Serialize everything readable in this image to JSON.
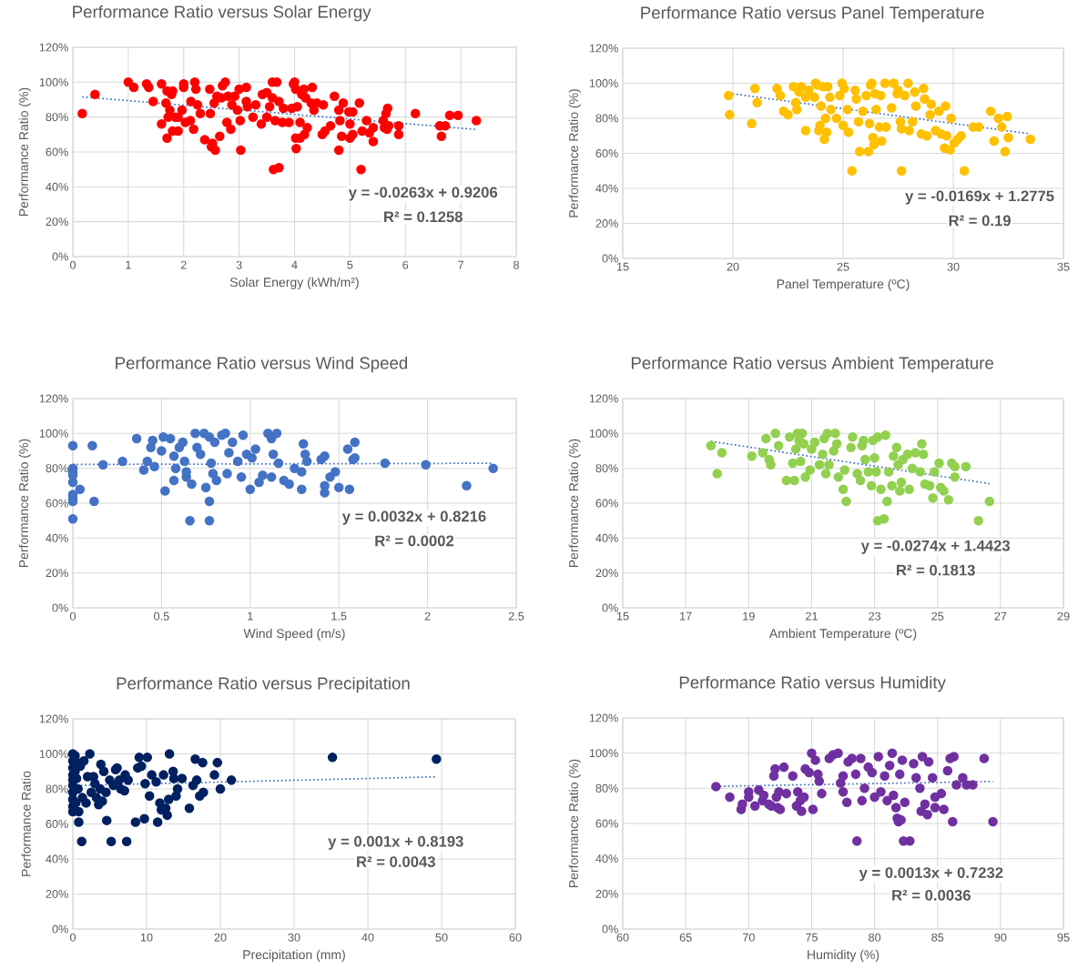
{
  "chart_data": [
    {
      "type": "scatter",
      "title": "Performance  Ratio versus Solar Energy",
      "xlabel": "Solar Energy (kWh/m²)",
      "ylabel": "Performance Ratio (%)",
      "xlim": [
        0,
        8
      ],
      "xticks": [
        0,
        1,
        2,
        3,
        4,
        5,
        6,
        7,
        8
      ],
      "ylim": [
        0,
        120
      ],
      "yticks": [
        {
          "value": 0,
          "label": "0%"
        },
        {
          "value": 20,
          "label": "20%"
        },
        {
          "value": 40,
          "label": "40%"
        },
        {
          "value": 60,
          "label": "60%"
        },
        {
          "value": 80,
          "label": "80%"
        },
        {
          "value": 100,
          "label": "100%"
        },
        {
          "value": 120,
          "label": "120%"
        }
      ],
      "grid": true,
      "marker": "circle",
      "annotations": [
        "y = -0.0263x + 0.9206",
        "R² = 0.1258"
      ],
      "series": [
        {
          "color": "#ff0000",
          "x": [
            0.17,
            0.4,
            1.0,
            1.1,
            1.33,
            1.37,
            1.45,
            1.6,
            1.6,
            1.68,
            1.7,
            1.7,
            1.72,
            1.75,
            1.78,
            1.8,
            1.8,
            1.85,
            1.9,
            1.9,
            1.97,
            2.0,
            2.0,
            2.03,
            2.12,
            2.13,
            2.18,
            2.2,
            2.22,
            2.25,
            2.3,
            2.38,
            2.47,
            2.48,
            2.5,
            2.52,
            2.55,
            2.57,
            2.6,
            2.65,
            2.68,
            2.7,
            2.75,
            2.78,
            2.8,
            2.85,
            2.87,
            2.92,
            2.97,
            3.0,
            3.02,
            3.03,
            3.13,
            3.13,
            3.15,
            3.25,
            3.3,
            3.4,
            3.42,
            3.5,
            3.5,
            3.55,
            3.6,
            3.6,
            3.62,
            3.65,
            3.68,
            3.72,
            3.72,
            3.78,
            3.8,
            3.9,
            3.95,
            3.98,
            4.0,
            4.02,
            4.02,
            4.03,
            4.05,
            4.1,
            4.1,
            4.13,
            4.17,
            4.18,
            4.2,
            4.23,
            4.3,
            4.32,
            4.35,
            4.4,
            4.5,
            4.52,
            4.55,
            4.65,
            4.72,
            4.8,
            4.8,
            4.82,
            4.85,
            4.88,
            4.98,
            5.0,
            5.0,
            5.05,
            5.05,
            5.17,
            5.2,
            5.22,
            5.3,
            5.35,
            5.42,
            5.42,
            5.6,
            5.62,
            5.65,
            5.67,
            5.68,
            5.7,
            5.88,
            5.88,
            6.18,
            6.62,
            6.65,
            6.72,
            6.8,
            6.95,
            7.28
          ],
          "values": [
            82,
            93,
            100,
            97,
            99,
            97,
            89,
            99,
            76,
            88,
            68,
            95,
            80,
            84,
            93,
            95,
            72,
            80,
            72,
            80,
            84,
            97,
            99,
            77,
            78,
            89,
            73,
            100,
            96,
            87,
            82,
            67,
            96,
            82,
            63,
            65,
            88,
            61,
            92,
            69,
            91,
            98,
            100,
            77,
            92,
            73,
            87,
            92,
            84,
            96,
            78,
            61,
            97,
            89,
            86,
            80,
            87,
            76,
            93,
            94,
            80,
            86,
            100,
            91,
            50,
            78,
            100,
            89,
            51,
            77,
            85,
            77,
            85,
            99,
            100,
            96,
            68,
            62,
            86,
            77,
            68,
            93,
            96,
            70,
            91,
            74,
            88,
            97,
            84,
            88,
            70,
            87,
            72,
            75,
            92,
            84,
            61,
            78,
            69,
            88,
            83,
            68,
            76,
            70,
            83,
            88,
            50,
            72,
            78,
            71,
            74,
            66,
            78,
            74,
            82,
            73,
            85,
            75,
            75,
            70,
            82,
            75,
            69,
            75,
            81,
            81,
            78
          ]
        },
        {
          "type": "line",
          "color": "#4472c4",
          "line_style": "dotted",
          "marker": "none",
          "x": [
            0.17,
            7.28
          ],
          "values": [
            91.6,
            72.9
          ]
        }
      ]
    },
    {
      "type": "scatter",
      "title": "Performance  Ratio versus Panel Temperature",
      "xlabel": "Panel Temperature (ºC)",
      "ylabel": "Performance Ratio (%)",
      "xlim": [
        15,
        35
      ],
      "xticks": [
        15,
        20,
        25,
        30,
        35
      ],
      "ylim": [
        0,
        120
      ],
      "yticks": [
        {
          "value": 0,
          "label": "0%"
        },
        {
          "value": 20,
          "label": "20%"
        },
        {
          "value": 40,
          "label": "40%"
        },
        {
          "value": 60,
          "label": "60%"
        },
        {
          "value": 80,
          "label": "80%"
        },
        {
          "value": 100,
          "label": "100%"
        },
        {
          "value": 120,
          "label": "120%"
        }
      ],
      "grid": true,
      "marker": "circle",
      "annotations": [
        "y = -0.0169x + 1.2775",
        "R² = 0.19"
      ],
      "series": [
        {
          "color": "#ffc000",
          "x": [
            19.8,
            19.85,
            20.85,
            21.0,
            21.1,
            22.0,
            22.15,
            22.3,
            22.5,
            22.75,
            22.85,
            22.9,
            23.0,
            23.1,
            23.3,
            23.3,
            23.45,
            23.7,
            23.75,
            23.85,
            23.9,
            23.95,
            24.0,
            24.1,
            24.15,
            24.2,
            24.25,
            24.3,
            24.4,
            24.45,
            24.7,
            24.85,
            24.95,
            25.0,
            25.05,
            25.2,
            25.25,
            25.4,
            25.55,
            25.6,
            25.7,
            25.75,
            25.9,
            26.05,
            26.15,
            26.2,
            26.25,
            26.3,
            26.35,
            26.4,
            26.45,
            26.5,
            26.65,
            26.7,
            26.75,
            26.9,
            26.95,
            27.2,
            27.3,
            27.45,
            27.5,
            27.6,
            27.65,
            27.65,
            27.8,
            27.95,
            28.0,
            28.15,
            28.25,
            28.3,
            28.55,
            28.65,
            28.7,
            28.8,
            28.95,
            29.0,
            29.2,
            29.35,
            29.45,
            29.6,
            29.65,
            29.7,
            29.85,
            29.9,
            30.05,
            30.2,
            30.35,
            30.5,
            30.9,
            31.15,
            31.7,
            31.85,
            32.05,
            32.2,
            32.35,
            32.45,
            32.5,
            33.5
          ],
          "values": [
            93,
            82,
            77,
            97,
            89,
            97,
            93,
            84,
            82,
            98,
            89,
            85,
            95,
            98,
            73,
            92,
            96,
            92,
            100,
            99,
            73,
            76,
            87,
            98,
            68,
            80,
            72,
            98,
            92,
            85,
            80,
            93,
            100,
            76,
            97,
            85,
            72,
            50,
            96,
            91,
            78,
            61,
            84,
            93,
            61,
            77,
            99,
            100,
            69,
            65,
            94,
            85,
            75,
            93,
            67,
            100,
            75,
            86,
            100,
            94,
            96,
            78,
            74,
            50,
            93,
            100,
            73,
            78,
            95,
            87,
            71,
            97,
            91,
            70,
            82,
            88,
            73,
            84,
            71,
            63,
            87,
            70,
            62,
            80,
            66,
            68,
            70,
            50,
            75,
            75,
            84,
            67,
            80,
            75,
            61,
            81,
            69,
            68
          ]
        },
        {
          "type": "line",
          "color": "#4472c4",
          "line_style": "dotted",
          "marker": "none",
          "x": [
            19.8,
            33.5
          ],
          "values": [
            94.3,
            71.1
          ]
        }
      ]
    },
    {
      "type": "scatter",
      "title": "Performance  Ratio versus Wind Speed",
      "xlabel": "Wind Speed (m/s)",
      "ylabel": "Performance Ratio (%)",
      "xlim": [
        0,
        2.5
      ],
      "xticks": [
        0,
        0.5,
        1,
        1.5,
        2,
        2.5
      ],
      "ylim": [
        0,
        120
      ],
      "yticks": [
        {
          "value": 0,
          "label": "0%"
        },
        {
          "value": 20,
          "label": "20%"
        },
        {
          "value": 40,
          "label": "40%"
        },
        {
          "value": 60,
          "label": "60%"
        },
        {
          "value": 80,
          "label": "80%"
        },
        {
          "value": 100,
          "label": "100%"
        },
        {
          "value": 120,
          "label": "120%"
        }
      ],
      "grid": true,
      "marker": "circle",
      "annotations": [
        "y = 0.0032x + 0.8216",
        "R² = 0.0002"
      ],
      "series": [
        {
          "color": "#4472c4",
          "x": [
            0,
            0,
            0,
            0,
            0,
            0,
            0,
            0,
            0,
            0.04,
            0.11,
            0.12,
            0.17,
            0.28,
            0.36,
            0.4,
            0.42,
            0.44,
            0.45,
            0.46,
            0.5,
            0.51,
            0.52,
            0.55,
            0.57,
            0.57,
            0.58,
            0.6,
            0.62,
            0.63,
            0.64,
            0.64,
            0.66,
            0.67,
            0.69,
            0.7,
            0.72,
            0.74,
            0.75,
            0.77,
            0.77,
            0.77,
            0.78,
            0.79,
            0.8,
            0.81,
            0.84,
            0.86,
            0.87,
            0.88,
            0.9,
            0.93,
            0.95,
            0.96,
            0.98,
            1.0,
            1.01,
            1.03,
            1.05,
            1.07,
            1.1,
            1.12,
            1.12,
            1.13,
            1.15,
            1.16,
            1.19,
            1.22,
            1.25,
            1.29,
            1.29,
            1.3,
            1.31,
            1.32,
            1.4,
            1.42,
            1.42,
            1.42,
            1.45,
            1.48,
            1.5,
            1.55,
            1.56,
            1.58,
            1.59,
            1.59,
            1.76,
            1.99,
            2.22,
            2.37
          ],
          "values": [
            93,
            80,
            78,
            76,
            72,
            65,
            63,
            61,
            51,
            68,
            93,
            61,
            82,
            84,
            97,
            79,
            84,
            92,
            96,
            81,
            90,
            98,
            67,
            97,
            87,
            73,
            80,
            92,
            95,
            84,
            75,
            78,
            50,
            71,
            100,
            92,
            88,
            100,
            69,
            98,
            61,
            50,
            83,
            77,
            95,
            73,
            99,
            100,
            77,
            89,
            95,
            84,
            75,
            99,
            88,
            68,
            86,
            91,
            72,
            76,
            100,
            97,
            75,
            88,
            100,
            83,
            73,
            71,
            80,
            68,
            78,
            94,
            88,
            84,
            85,
            87,
            70,
            66,
            75,
            78,
            69,
            91,
            68,
            85,
            95,
            86,
            83,
            82,
            70,
            80
          ]
        },
        {
          "type": "line",
          "color": "#4472c4",
          "line_style": "dotted",
          "marker": "none",
          "x": [
            0,
            2.37
          ],
          "values": [
            82.2,
            82.9
          ]
        }
      ]
    },
    {
      "type": "scatter",
      "title": "Performance  Ratio versus Ambient Temperature",
      "xlabel": "Ambient Temperature (ºC)",
      "ylabel": "Performance Ratio (%)",
      "xlim": [
        15,
        29
      ],
      "xticks": [
        15,
        17,
        19,
        21,
        23,
        25,
        27,
        29
      ],
      "ylim": [
        0,
        120
      ],
      "yticks": [
        {
          "value": 0,
          "label": "0%"
        },
        {
          "value": 20,
          "label": "20%"
        },
        {
          "value": 40,
          "label": "40%"
        },
        {
          "value": 60,
          "label": "60%"
        },
        {
          "value": 80,
          "label": "80%"
        },
        {
          "value": 100,
          "label": "100%"
        },
        {
          "value": 120,
          "label": "120%"
        }
      ],
      "grid": true,
      "marker": "circle",
      "annotations": [
        "y = -0.0274x + 1.4423",
        "R² = 0.1813"
      ],
      "series": [
        {
          "color": "#92d050",
          "x": [
            17.8,
            18.0,
            18.15,
            19.1,
            19.45,
            19.55,
            19.65,
            19.7,
            19.85,
            19.95,
            20.2,
            20.3,
            20.4,
            20.45,
            20.5,
            20.55,
            20.6,
            20.65,
            20.7,
            20.75,
            20.8,
            20.95,
            21.0,
            21.1,
            21.25,
            21.35,
            21.4,
            21.45,
            21.5,
            21.55,
            21.7,
            21.75,
            21.8,
            21.85,
            22.0,
            22.05,
            22.1,
            22.25,
            22.3,
            22.45,
            22.55,
            22.6,
            22.65,
            22.7,
            22.8,
            22.9,
            22.95,
            23.0,
            23.05,
            23.1,
            23.1,
            23.2,
            23.3,
            23.35,
            23.4,
            23.45,
            23.55,
            23.6,
            23.7,
            23.75,
            23.8,
            23.85,
            23.9,
            24.05,
            24.1,
            24.2,
            24.3,
            24.45,
            24.5,
            24.55,
            24.6,
            24.75,
            24.85,
            24.9,
            25.05,
            25.1,
            25.2,
            25.35,
            25.45,
            25.55,
            25.55,
            25.9,
            26.3,
            26.65
          ],
          "values": [
            93,
            77,
            89,
            87,
            89,
            97,
            85,
            82,
            100,
            93,
            73,
            98,
            83,
            73,
            91,
            100,
            96,
            84,
            100,
            94,
            75,
            79,
            91,
            95,
            82,
            88,
            97,
            77,
            100,
            82,
            90,
            100,
            94,
            75,
            68,
            79,
            61,
            92,
            98,
            77,
            73,
            93,
            96,
            85,
            78,
            70,
            96,
            86,
            78,
            98,
            50,
            68,
            51,
            99,
            61,
            78,
            70,
            87,
            92,
            82,
            67,
            72,
            85,
            88,
            68,
            80,
            89,
            78,
            94,
            88,
            71,
            70,
            63,
            78,
            83,
            69,
            67,
            62,
            83,
            81,
            75,
            81,
            50,
            61
          ]
        },
        {
          "type": "line",
          "color": "#4472c4",
          "line_style": "dotted",
          "marker": "none",
          "x": [
            17.8,
            26.65
          ],
          "values": [
            95.5,
            71.2
          ]
        }
      ]
    },
    {
      "type": "scatter",
      "title": "Performance  Ratio versus Precipitation",
      "xlabel": "Precipitation (mm)",
      "ylabel": "Performance Ratio",
      "xlim": [
        0,
        60
      ],
      "xticks": [
        0,
        10,
        20,
        30,
        40,
        50,
        60
      ],
      "ylim": [
        0,
        120
      ],
      "yticks": [
        {
          "value": 0,
          "label": "0%"
        },
        {
          "value": 20,
          "label": "20%"
        },
        {
          "value": 40,
          "label": "40%"
        },
        {
          "value": 60,
          "label": "60%"
        },
        {
          "value": 80,
          "label": "80%"
        },
        {
          "value": 100,
          "label": "100%"
        },
        {
          "value": 120,
          "label": "120%"
        }
      ],
      "grid": true,
      "marker": "circle",
      "annotations": [
        "y = 0.001x + 0.8193",
        "R² = 0.0043"
      ],
      "series": [
        {
          "color": "#002060",
          "x": [
            0,
            0,
            0,
            0,
            0,
            0,
            0,
            0,
            0,
            0,
            0.3,
            0.3,
            0.4,
            0.5,
            0.6,
            0.7,
            0.8,
            0.8,
            1.0,
            1.2,
            1.3,
            1.5,
            1.8,
            2.0,
            2.3,
            2.5,
            2.8,
            3.0,
            3.2,
            3.5,
            3.7,
            3.8,
            4.0,
            4.2,
            4.5,
            4.6,
            5.0,
            5.2,
            5.5,
            5.8,
            6.0,
            6.3,
            6.5,
            7.0,
            7.1,
            7.3,
            7.5,
            8.5,
            8.8,
            9.0,
            9.3,
            9.7,
            9.8,
            10.1,
            10.4,
            10.7,
            11.3,
            11.5,
            11.8,
            12.0,
            12.3,
            12.6,
            12.8,
            13.0,
            13.1,
            13.6,
            13.7,
            14.0,
            14.2,
            14.8,
            15.8,
            16.3,
            16.6,
            16.8,
            17.2,
            17.6,
            17.7,
            19.2,
            19.6,
            20.0,
            21.5,
            35.2,
            49.3
          ],
          "values": [
            100,
            96,
            92,
            88,
            85,
            82,
            78,
            74,
            70,
            67,
            99,
            90,
            72,
            86,
            95,
            80,
            61,
            67,
            93,
            50,
            75,
            96,
            72,
            87,
            100,
            78,
            87,
            83,
            75,
            71,
            80,
            94,
            73,
            90,
            78,
            62,
            85,
            50,
            82,
            91,
            92,
            85,
            80,
            79,
            88,
            50,
            85,
            61,
            92,
            98,
            93,
            63,
            83,
            98,
            76,
            88,
            84,
            61,
            72,
            68,
            88,
            69,
            65,
            74,
            100,
            90,
            86,
            76,
            80,
            86,
            69,
            82,
            97,
            85,
            76,
            95,
            78,
            88,
            95,
            80,
            85,
            98,
            97
          ]
        },
        {
          "type": "line",
          "color": "#4472c4",
          "line_style": "dotted",
          "marker": "none",
          "x": [
            0,
            49.3
          ],
          "values": [
            81.9,
            86.9
          ]
        }
      ]
    },
    {
      "type": "scatter",
      "title": "Performance  Ratio versus Humidity",
      "xlabel": "Humidity (%)",
      "ylabel": "Performance Ratio (%)",
      "xlim": [
        60,
        95
      ],
      "xticks": [
        60,
        65,
        70,
        75,
        80,
        85,
        90,
        95
      ],
      "ylim": [
        0,
        120
      ],
      "yticks": [
        {
          "value": 0,
          "label": "0%"
        },
        {
          "value": 20,
          "label": "20%"
        },
        {
          "value": 40,
          "label": "40%"
        },
        {
          "value": 60,
          "label": "60%"
        },
        {
          "value": 80,
          "label": "80%"
        },
        {
          "value": 100,
          "label": "100%"
        },
        {
          "value": 120,
          "label": "120%"
        }
      ],
      "grid": true,
      "marker": "circle",
      "annotations": [
        "y = 0.0013x + 0.7232",
        "R² = 0.0036"
      ],
      "series": [
        {
          "color": "#7030a0",
          "x": [
            67.4,
            68.5,
            69.4,
            69.5,
            70.0,
            70.0,
            70.5,
            70.8,
            71.1,
            71.2,
            71.6,
            71.8,
            72.0,
            72.1,
            72.2,
            72.3,
            72.4,
            72.5,
            72.8,
            73.0,
            73.5,
            73.8,
            73.9,
            74.1,
            74.2,
            74.4,
            74.5,
            74.8,
            75.0,
            75.1,
            75.3,
            75.5,
            75.6,
            75.8,
            76.4,
            76.7,
            77.1,
            77.3,
            77.5,
            77.5,
            77.8,
            77.9,
            78.2,
            78.5,
            78.6,
            78.9,
            79.0,
            79.2,
            79.5,
            79.8,
            80.0,
            80.3,
            80.5,
            80.8,
            81.0,
            81.2,
            81.4,
            81.5,
            81.7,
            81.8,
            81.9,
            82.0,
            82.1,
            82.2,
            82.3,
            82.4,
            82.8,
            83.1,
            83.3,
            83.6,
            83.7,
            83.8,
            84.0,
            84.2,
            84.3,
            84.6,
            84.8,
            84.8,
            85.3,
            85.5,
            85.8,
            86.0,
            86.2,
            86.3,
            86.5,
            87.0,
            87.3,
            87.8,
            88.7,
            89.4
          ],
          "values": [
            81,
            75,
            68,
            71,
            75,
            78,
            70,
            79,
            73,
            76,
            71,
            70,
            87,
            91,
            75,
            69,
            78,
            68,
            92,
            77,
            87,
            70,
            78,
            73,
            67,
            75,
            91,
            89,
            100,
            68,
            96,
            88,
            84,
            77,
            97,
            99,
            100,
            83,
            87,
            78,
            72,
            95,
            97,
            88,
            50,
            97,
            73,
            80,
            92,
            89,
            75,
            98,
            78,
            87,
            73,
            93,
            100,
            76,
            69,
            63,
            61,
            88,
            62,
            96,
            50,
            72,
            50,
            94,
            86,
            80,
            67,
            98,
            71,
            65,
            95,
            86,
            69,
            75,
            77,
            68,
            90,
            97,
            61,
            98,
            82,
            86,
            82,
            82,
            97,
            61
          ]
        },
        {
          "type": "line",
          "color": "#4472c4",
          "line_style": "dotted",
          "marker": "none",
          "x": [
            67.4,
            89.4
          ],
          "values": [
            81.1,
            83.9
          ]
        }
      ]
    }
  ]
}
